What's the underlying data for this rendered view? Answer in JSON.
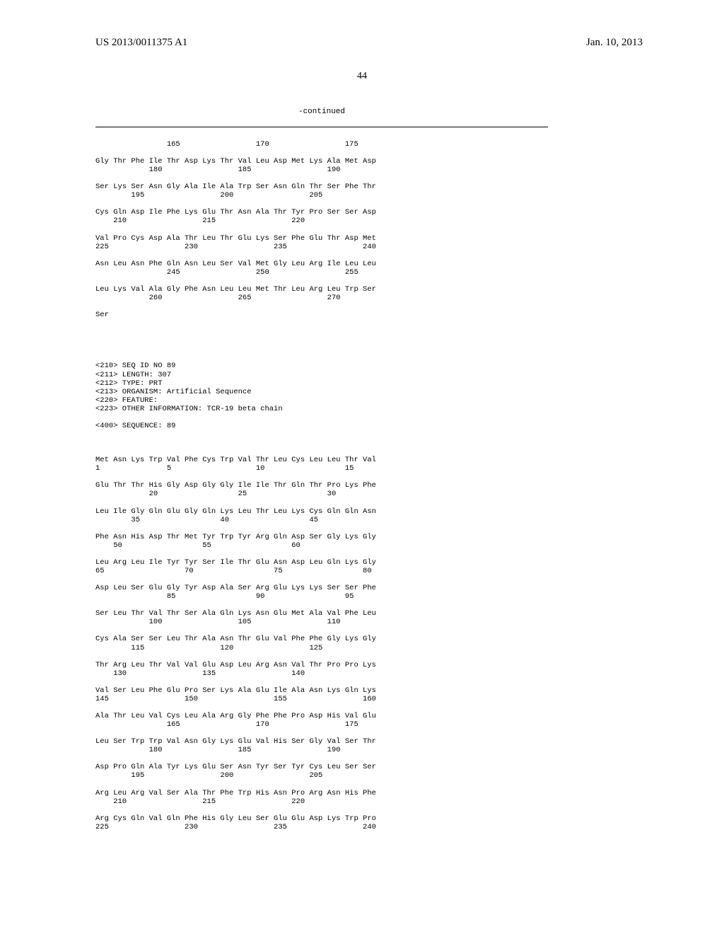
{
  "header": {
    "publication_number": "US 2013/0011375 A1",
    "date": "Jan. 10, 2013",
    "page_number": "44"
  },
  "continued_label": "-continued",
  "sequence_blocks": [
    {
      "rows": [
        {
          "residues": "                165                 170                 175",
          "nums": ""
        },
        {
          "residues": "",
          "nums": ""
        },
        {
          "residues": "Gly Thr Phe Ile Thr Asp Lys Thr Val Leu Asp Met Lys Ala Met Asp",
          "nums": "            180                 185                 190"
        },
        {
          "residues": "",
          "nums": ""
        },
        {
          "residues": "Ser Lys Ser Asn Gly Ala Ile Ala Trp Ser Asn Gln Thr Ser Phe Thr",
          "nums": "        195                 200                 205"
        },
        {
          "residues": "",
          "nums": ""
        },
        {
          "residues": "Cys Gln Asp Ile Phe Lys Glu Thr Asn Ala Thr Tyr Pro Ser Ser Asp",
          "nums": "    210                 215                 220"
        },
        {
          "residues": "",
          "nums": ""
        },
        {
          "residues": "Val Pro Cys Asp Ala Thr Leu Thr Glu Lys Ser Phe Glu Thr Asp Met",
          "nums": "225                 230                 235                 240"
        },
        {
          "residues": "",
          "nums": ""
        },
        {
          "residues": "Asn Leu Asn Phe Gln Asn Leu Ser Val Met Gly Leu Arg Ile Leu Leu",
          "nums": "                245                 250                 255"
        },
        {
          "residues": "",
          "nums": ""
        },
        {
          "residues": "Leu Lys Val Ala Gly Phe Asn Leu Leu Met Thr Leu Arg Leu Trp Ser",
          "nums": "            260                 265                 270"
        },
        {
          "residues": "",
          "nums": ""
        },
        {
          "residues": "Ser",
          "nums": ""
        }
      ]
    }
  ],
  "seq_header": {
    "lines": [
      "<210> SEQ ID NO 89",
      "<211> LENGTH: 307",
      "<212> TYPE: PRT",
      "<213> ORGANISM: Artificial Sequence",
      "<220> FEATURE:",
      "<223> OTHER INFORMATION: TCR-19 beta chain",
      "",
      "<400> SEQUENCE: 89"
    ]
  },
  "sequence_blocks_2": [
    {
      "rows": [
        {
          "residues": "Met Asn Lys Trp Val Phe Cys Trp Val Thr Leu Cys Leu Leu Thr Val",
          "nums": "1               5                   10                  15"
        },
        {
          "residues": "",
          "nums": ""
        },
        {
          "residues": "Glu Thr Thr His Gly Asp Gly Gly Ile Ile Thr Gln Thr Pro Lys Phe",
          "nums": "            20                  25                  30"
        },
        {
          "residues": "",
          "nums": ""
        },
        {
          "residues": "Leu Ile Gly Gln Glu Gly Gln Lys Leu Thr Leu Lys Cys Gln Gln Asn",
          "nums": "        35                  40                  45"
        },
        {
          "residues": "",
          "nums": ""
        },
        {
          "residues": "Phe Asn His Asp Thr Met Tyr Trp Tyr Arg Gln Asp Ser Gly Lys Gly",
          "nums": "    50                  55                  60"
        },
        {
          "residues": "",
          "nums": ""
        },
        {
          "residues": "Leu Arg Leu Ile Tyr Tyr Ser Ile Thr Glu Asn Asp Leu Gln Lys Gly",
          "nums": "65                  70                  75                  80"
        },
        {
          "residues": "",
          "nums": ""
        },
        {
          "residues": "Asp Leu Ser Glu Gly Tyr Asp Ala Ser Arg Glu Lys Lys Ser Ser Phe",
          "nums": "                85                  90                  95"
        },
        {
          "residues": "",
          "nums": ""
        },
        {
          "residues": "Ser Leu Thr Val Thr Ser Ala Gln Lys Asn Glu Met Ala Val Phe Leu",
          "nums": "            100                 105                 110"
        },
        {
          "residues": "",
          "nums": ""
        },
        {
          "residues": "Cys Ala Ser Ser Leu Thr Ala Asn Thr Glu Val Phe Phe Gly Lys Gly",
          "nums": "        115                 120                 125"
        },
        {
          "residues": "",
          "nums": ""
        },
        {
          "residues": "Thr Arg Leu Thr Val Val Glu Asp Leu Arg Asn Val Thr Pro Pro Lys",
          "nums": "    130                 135                 140"
        },
        {
          "residues": "",
          "nums": ""
        },
        {
          "residues": "Val Ser Leu Phe Glu Pro Ser Lys Ala Glu Ile Ala Asn Lys Gln Lys",
          "nums": "145                 150                 155                 160"
        },
        {
          "residues": "",
          "nums": ""
        },
        {
          "residues": "Ala Thr Leu Val Cys Leu Ala Arg Gly Phe Phe Pro Asp His Val Glu",
          "nums": "                165                 170                 175"
        },
        {
          "residues": "",
          "nums": ""
        },
        {
          "residues": "Leu Ser Trp Trp Val Asn Gly Lys Glu Val His Ser Gly Val Ser Thr",
          "nums": "            180                 185                 190"
        },
        {
          "residues": "",
          "nums": ""
        },
        {
          "residues": "Asp Pro Gln Ala Tyr Lys Glu Ser Asn Tyr Ser Tyr Cys Leu Ser Ser",
          "nums": "        195                 200                 205"
        },
        {
          "residues": "",
          "nums": ""
        },
        {
          "residues": "Arg Leu Arg Val Ser Ala Thr Phe Trp His Asn Pro Arg Asn His Phe",
          "nums": "    210                 215                 220"
        },
        {
          "residues": "",
          "nums": ""
        },
        {
          "residues": "Arg Cys Gln Val Gln Phe His Gly Leu Ser Glu Glu Asp Lys Trp Pro",
          "nums": "225                 230                 235                 240"
        }
      ]
    }
  ]
}
